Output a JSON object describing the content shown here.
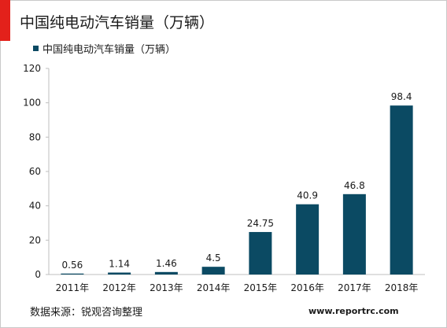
{
  "colors": {
    "accent": "#e3211b",
    "bar": "#0b4a63",
    "axis": "#bfbfbf",
    "text": "#1a1a1a"
  },
  "header": {
    "title": "中国纯电动汽车销量（万辆）"
  },
  "footer": {
    "source": "数据来源：锐观咨询整理",
    "website": "www.reportrc.com"
  },
  "chart_data": {
    "type": "bar",
    "title": "中国纯电动汽车销量（万辆）",
    "xlabel": "",
    "ylabel": "",
    "categories": [
      "2011年",
      "2012年",
      "2013年",
      "2014年",
      "2015年",
      "2016年",
      "2017年",
      "2018年"
    ],
    "series": [
      {
        "name": "中国纯电动汽车销量（万辆）",
        "values": [
          0.56,
          1.14,
          1.46,
          4.5,
          24.75,
          40.9,
          46.8,
          98.4
        ],
        "labels": [
          "0.56",
          "1.14",
          "1.46",
          "4.5",
          "24.75",
          "40.9",
          "46.8",
          "98.4"
        ]
      }
    ],
    "ylim": [
      0,
      120
    ],
    "yticks": [
      0,
      20,
      40,
      60,
      80,
      100,
      120
    ],
    "grid": false,
    "legend": "top-left"
  }
}
